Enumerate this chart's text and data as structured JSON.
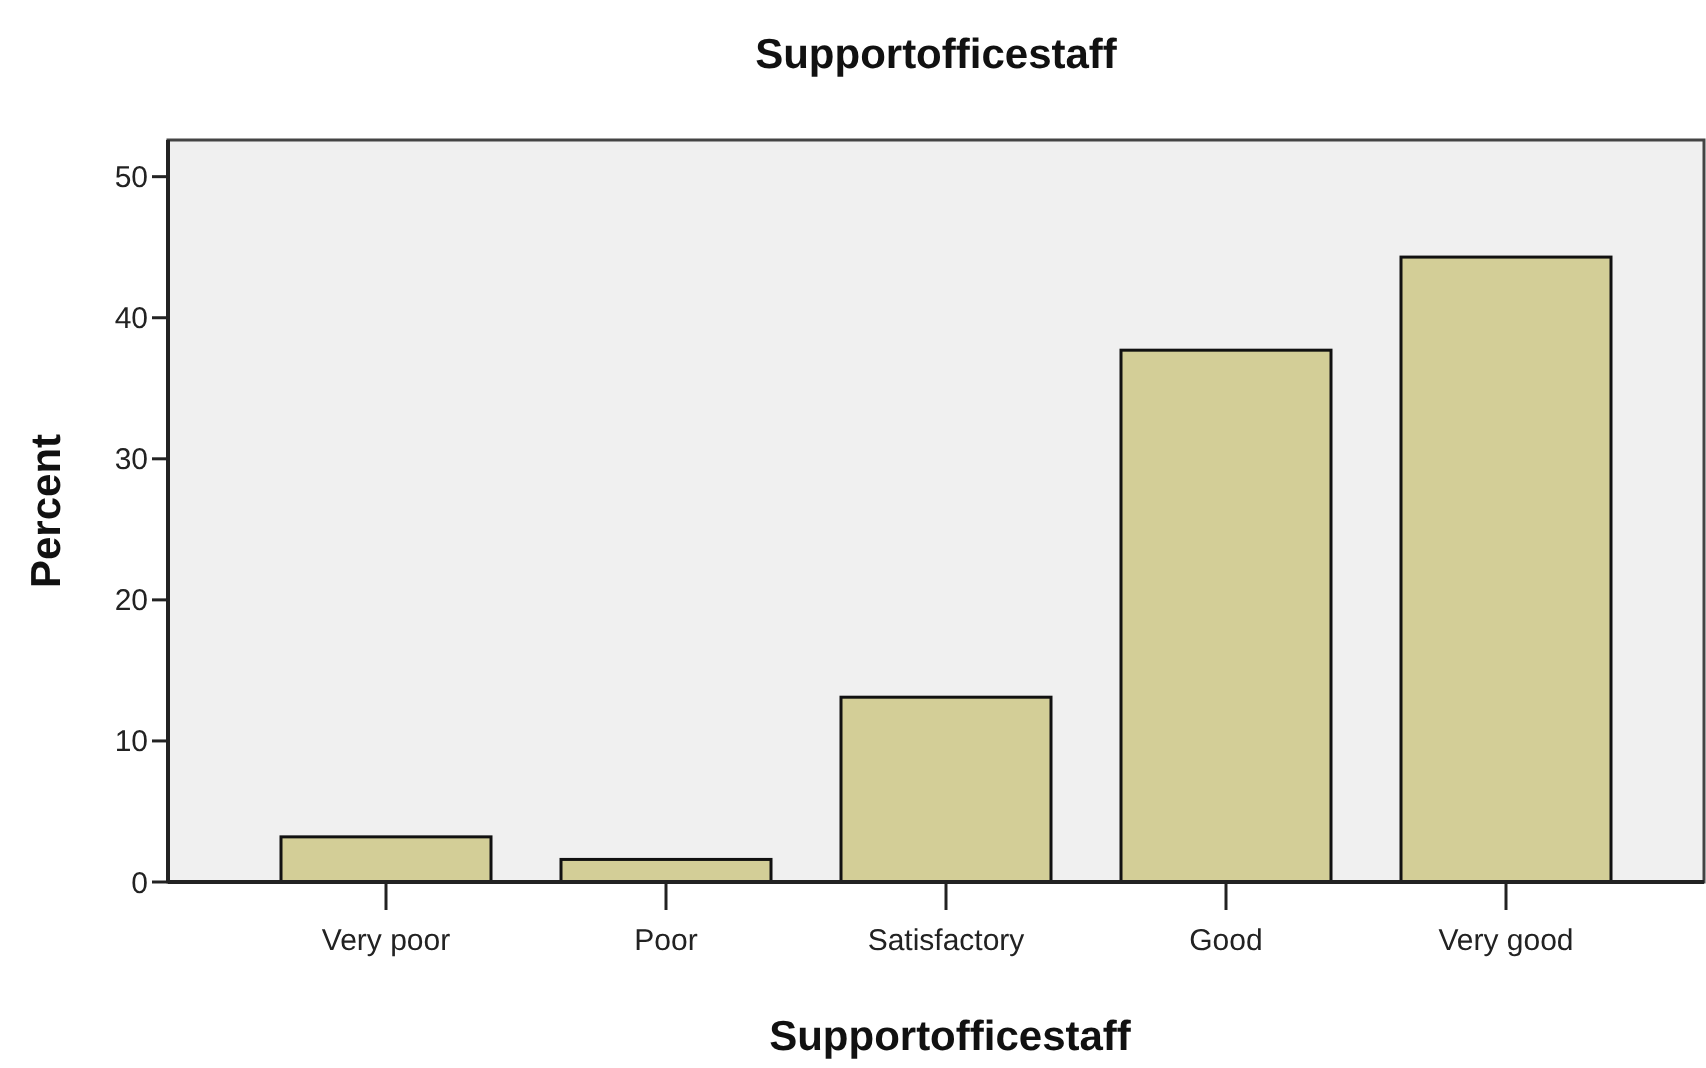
{
  "chart_data": {
    "type": "bar",
    "title": "Supportofficestaff",
    "xlabel": "Supportofficestaff",
    "ylabel": "Percent",
    "categories": [
      "Very poor",
      "Poor",
      "Satisfactory",
      "Good",
      "Very good"
    ],
    "values": [
      3.2,
      1.6,
      13.1,
      37.7,
      44.3
    ],
    "color": "#d3ce97",
    "ylim": [
      0,
      52.6
    ],
    "yticks": [
      0,
      10,
      20,
      30,
      40,
      50
    ],
    "grid": false
  }
}
